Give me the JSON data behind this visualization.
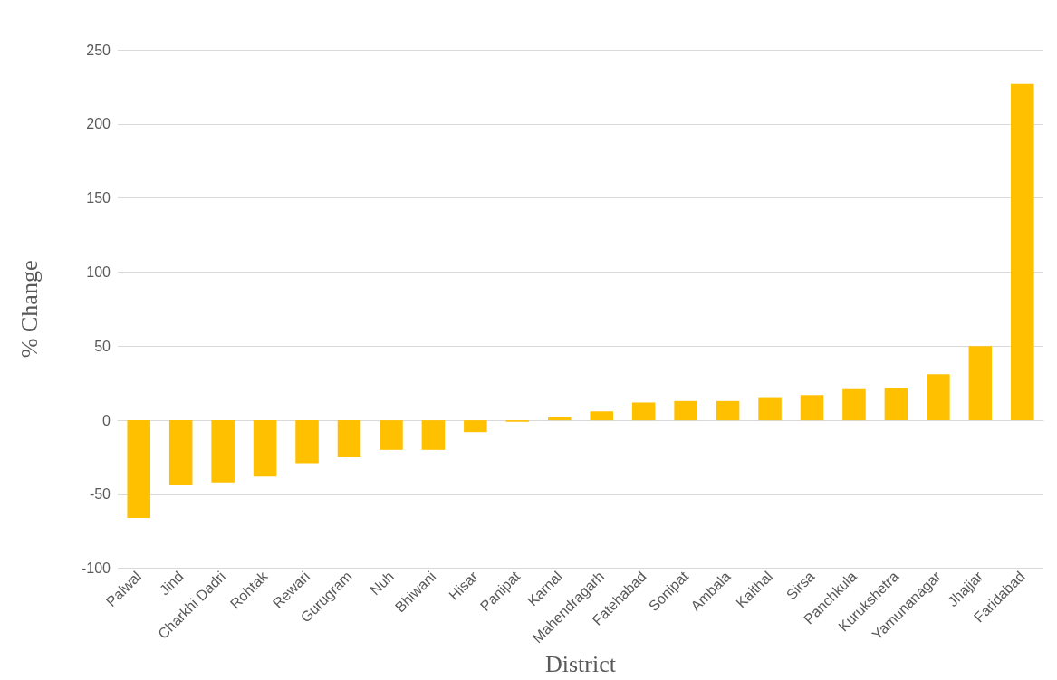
{
  "chart_data": {
    "type": "bar",
    "xlabel": "District",
    "ylabel": "% Change",
    "categories": [
      "Palwal",
      "Jind",
      "Charkhi Dadri",
      "Rohtak",
      "Rewari",
      "Gurugram",
      "Nuh",
      "Bhiwani",
      "Hisar",
      "Panipat",
      "Karnal",
      "Mahendragarh",
      "Fatehabad",
      "Sonipat",
      "Ambala",
      "Kaithal",
      "Sirsa",
      "Panchkula",
      "Kurukshetra",
      "Yamunanagar",
      "Jhajjar",
      "Faridabad"
    ],
    "values": [
      -66,
      -44,
      -42,
      -38,
      -29,
      -25,
      -20,
      -20,
      -8,
      -1,
      2,
      6,
      12,
      13,
      13,
      15,
      17,
      21,
      22,
      31,
      50,
      227
    ],
    "color": "#ffc000",
    "ylim": [
      -100,
      250
    ],
    "yticks": [
      -100,
      -50,
      0,
      50,
      100,
      150,
      200,
      250
    ],
    "grid": "y"
  }
}
